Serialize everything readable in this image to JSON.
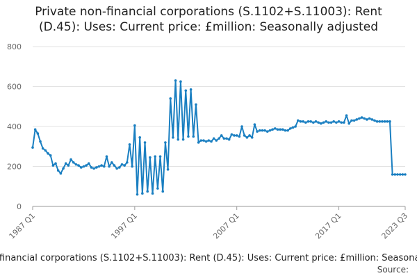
{
  "chart_data": {
    "type": "line",
    "title": "Private non-financial corporations (S.1102+S.11003): Rent (D.45): Uses: Current price: £million: Seasonally adjusted",
    "categories": [
      "1987 Q1",
      null,
      null,
      null,
      null,
      null,
      null,
      null,
      null,
      null,
      null,
      null,
      null,
      null,
      null,
      null,
      null,
      null,
      null,
      null,
      null,
      null,
      null,
      null,
      null,
      null,
      null,
      null,
      null,
      null,
      null,
      null,
      null,
      null,
      null,
      null,
      null,
      null,
      null,
      null,
      "1997 Q1",
      null,
      null,
      null,
      null,
      null,
      null,
      null,
      null,
      null,
      null,
      null,
      null,
      null,
      null,
      null,
      null,
      null,
      null,
      null,
      null,
      null,
      null,
      null,
      null,
      null,
      null,
      null,
      null,
      null,
      null,
      null,
      null,
      null,
      null,
      null,
      null,
      null,
      null,
      null,
      "2007 Q1",
      null,
      null,
      null,
      null,
      null,
      null,
      null,
      null,
      null,
      null,
      null,
      null,
      null,
      null,
      null,
      null,
      null,
      null,
      null,
      null,
      null,
      null,
      null,
      null,
      null,
      null,
      null,
      null,
      null,
      null,
      null,
      null,
      null,
      null,
      null,
      null,
      null,
      null,
      null,
      "2017 Q1",
      null,
      null,
      null,
      null,
      null,
      null,
      null,
      null,
      null,
      null,
      null,
      null,
      null,
      null,
      null,
      null,
      null,
      null,
      null,
      null,
      null,
      null,
      null,
      null,
      null,
      "2023 Q3"
    ],
    "series": [
      {
        "name": "Private non-financial corporations (S.1102+S.11003): Rent (D.45): Uses: Current price: £million: Seasonally adjusted",
        "color": "#1a7fc1",
        "values": [
          295,
          385,
          365,
          325,
          290,
          280,
          265,
          255,
          205,
          215,
          180,
          165,
          190,
          215,
          205,
          235,
          220,
          210,
          205,
          195,
          200,
          205,
          215,
          195,
          190,
          195,
          200,
          205,
          200,
          250,
          200,
          220,
          205,
          190,
          195,
          210,
          205,
          220,
          310,
          200,
          405,
          60,
          345,
          65,
          320,
          75,
          245,
          65,
          250,
          90,
          250,
          75,
          320,
          185,
          540,
          345,
          630,
          335,
          625,
          335,
          580,
          350,
          585,
          350,
          510,
          320,
          330,
          330,
          325,
          330,
          325,
          340,
          330,
          340,
          355,
          340,
          340,
          335,
          360,
          355,
          355,
          350,
          400,
          355,
          345,
          355,
          345,
          410,
          375,
          380,
          380,
          380,
          375,
          380,
          385,
          390,
          385,
          385,
          385,
          380,
          380,
          390,
          395,
          400,
          430,
          425,
          425,
          420,
          425,
          425,
          420,
          425,
          420,
          415,
          420,
          425,
          420,
          420,
          425,
          420,
          425,
          420,
          420,
          455,
          415,
          430,
          430,
          435,
          440,
          445,
          440,
          435,
          440,
          435,
          430,
          425,
          425,
          425,
          425,
          425,
          425,
          160,
          160,
          160,
          160,
          160,
          160
        ]
      }
    ],
    "ylim": [
      0,
      800
    ],
    "yticks": [
      0,
      200,
      400,
      600,
      800
    ],
    "grid": true,
    "source_label": "Source:"
  }
}
